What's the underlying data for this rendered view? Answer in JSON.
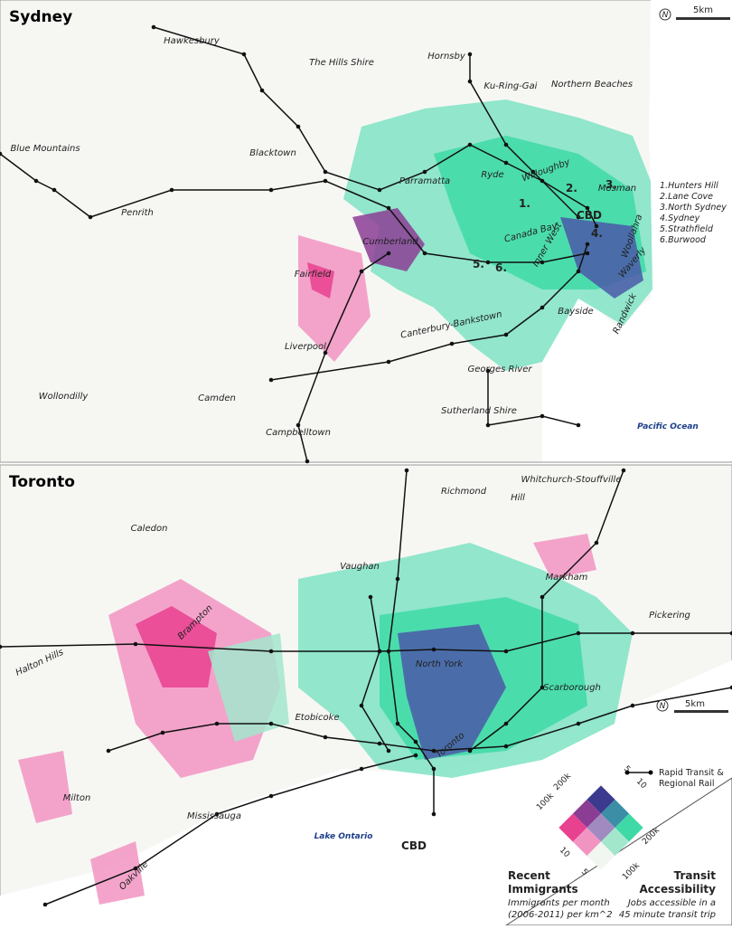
{
  "sydney": {
    "title": "Sydney",
    "scale": "5km",
    "north": "N",
    "ocean": "Pacific Ocean",
    "cbd": "CBD",
    "places": [
      "Hawkesbury",
      "The Hills Shire",
      "Hornsby",
      "Ku-Ring-Gai",
      "Northern Beaches",
      "Blue Mountains",
      "Blacktown",
      "Parramatta",
      "Ryde",
      "Willoughby",
      "Mosman",
      "Penrith",
      "Cumberland",
      "Canada Bay",
      "Inner West",
      "Woollahra",
      "Waverly",
      "Fairfield",
      "Canterbury-Bankstown",
      "Bayside",
      "Randwick",
      "Liverpool",
      "Georges River",
      "Wollondilly",
      "Camden",
      "Sutherland Shire",
      "Campbelltown"
    ],
    "numbers": [
      "1.",
      "2.",
      "3.",
      "4.",
      "5.",
      "6."
    ],
    "key": [
      "1.Hunters Hill",
      "2.Lane Cove",
      "3.North Sydney",
      "4.Sydney",
      "5.Strathfield",
      "6.Burwood"
    ]
  },
  "toronto": {
    "title": "Toronto",
    "scale": "5km",
    "north": "N",
    "lake": "Lake Ontario",
    "cbd": "CBD",
    "places": [
      "Whitchurch-Stouffville",
      "Richmond",
      "Hill",
      "Caledon",
      "Vaughan",
      "Markham",
      "Pickering",
      "Brampton",
      "Halton Hills",
      "North York",
      "Scarborough",
      "Etobicoke",
      "Toronto",
      "Milton",
      "Mississauga",
      "Oakville"
    ]
  },
  "legend": {
    "rail": [
      "Rapid Transit &",
      "Regional Rail"
    ],
    "immigrant_ticks": [
      "200k",
      "100k",
      "10",
      "5"
    ],
    "transit_ticks": [
      "10",
      "5",
      "200k",
      "100k"
    ],
    "immigrants_title": [
      "Recent",
      "Immigrants"
    ],
    "immigrants_note": [
      "Immigrants per month",
      "(2006-2011) per km^2"
    ],
    "transit_title": [
      "Transit",
      "Accessibility"
    ],
    "transit_note": [
      "Jobs accessible in a",
      "45 minute transit trip"
    ]
  }
}
